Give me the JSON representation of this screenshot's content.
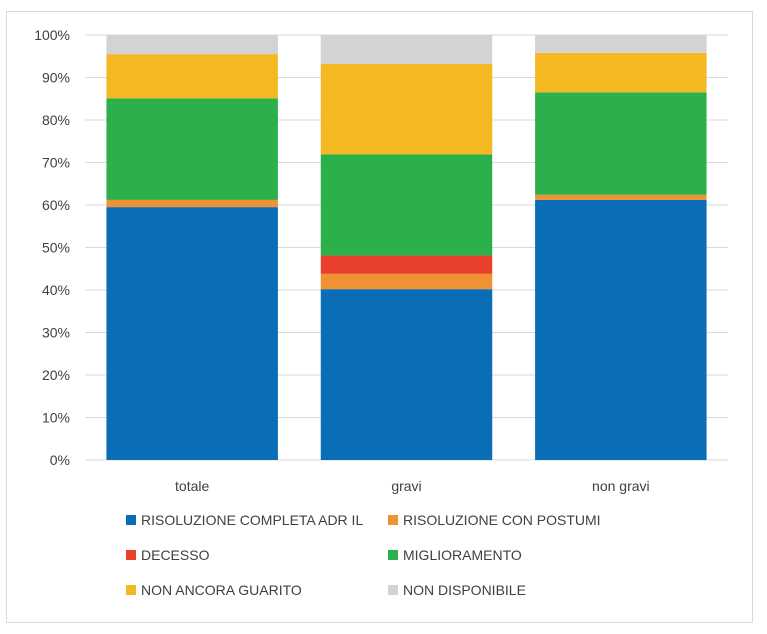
{
  "chart_data": {
    "type": "bar",
    "stacked": true,
    "categories": [
      "totale",
      "gravi",
      "non gravi"
    ],
    "ylim": [
      0,
      100
    ],
    "yticks": [
      "0%",
      "10%",
      "20%",
      "30%",
      "40%",
      "50%",
      "60%",
      "70%",
      "80%",
      "90%",
      "100%"
    ],
    "grid": true,
    "legend_position": "bottom",
    "series": [
      {
        "name": "RISOLUZIONE COMPLETA ADR IL",
        "color": "#0a6eb6",
        "values": [
          59.5,
          40.2,
          61.2
        ]
      },
      {
        "name": "RISOLUZIONE CON POSTUMI",
        "color": "#ee9234",
        "values": [
          1.7,
          3.6,
          1.2
        ]
      },
      {
        "name": "DECESSO",
        "color": "#e8402a",
        "values": [
          0.0,
          4.3,
          0.0
        ]
      },
      {
        "name": "MIGLIORAMENTO",
        "color": "#2bb04b",
        "values": [
          23.9,
          23.8,
          24.1
        ]
      },
      {
        "name": "NON ANCORA GUARITO",
        "color": "#f4b823",
        "values": [
          10.4,
          21.3,
          9.3
        ]
      },
      {
        "name": "NON DISPONIBILE",
        "color": "#d3d3d3",
        "values": [
          4.5,
          6.8,
          4.2
        ]
      }
    ]
  }
}
